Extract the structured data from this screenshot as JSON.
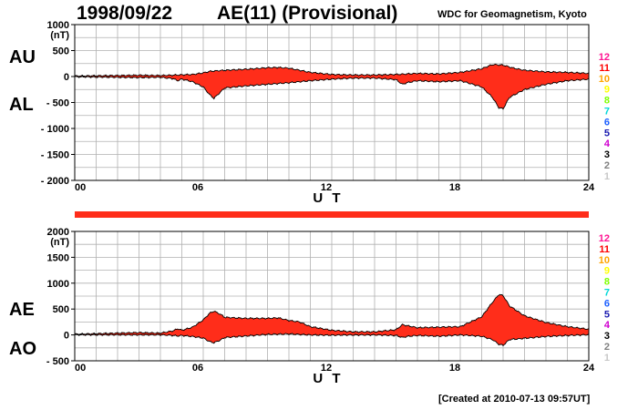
{
  "header": {
    "date": "1998/09/22",
    "title": "AE(11) (Provisional)",
    "source": "WDC for Geomagnetism, Kyoto",
    "created": "[Created at 2010-07-13 09:57UT]"
  },
  "colors": {
    "fill": "#ff2d1a",
    "line": "#000000",
    "grid": "#b0b0b0"
  },
  "station_counts": [
    {
      "label": "12",
      "color": "#ff1493"
    },
    {
      "label": "11",
      "color": "#ff0000"
    },
    {
      "label": "10",
      "color": "#ffa500"
    },
    {
      "label": "9",
      "color": "#ffff00"
    },
    {
      "label": "8",
      "color": "#7fff00"
    },
    {
      "label": "7",
      "color": "#00d8d8"
    },
    {
      "label": "6",
      "color": "#1e60ff"
    },
    {
      "label": "5",
      "color": "#1c1cb0"
    },
    {
      "label": "4",
      "color": "#d000d0"
    },
    {
      "label": "3",
      "color": "#000000"
    },
    {
      "label": "2",
      "color": "#808080"
    },
    {
      "label": "1",
      "color": "#c8c8c8"
    }
  ],
  "chart_data": [
    {
      "type": "area",
      "unit": "(nT)",
      "xlabel": "U T",
      "xlim": [
        0,
        24
      ],
      "xticks": [
        "00",
        "06",
        "12",
        "18",
        "24"
      ],
      "ylim": [
        -2000,
        1000
      ],
      "yticks": [
        "1000",
        "500",
        "0",
        "- 500",
        "- 1000",
        "- 1500",
        "- 2000"
      ],
      "grid": true,
      "series": [
        {
          "name": "AU",
          "x": [
            0,
            1,
            2,
            3,
            4,
            4.8,
            5.5,
            6,
            6.3,
            6.6,
            7,
            8,
            9,
            9.5,
            10,
            10.5,
            11,
            12,
            13,
            14,
            15,
            15.5,
            16,
            17,
            18,
            19,
            19.5,
            20,
            20.5,
            21,
            22,
            23,
            24
          ],
          "values": [
            10,
            15,
            20,
            25,
            20,
            30,
            40,
            70,
            100,
            110,
            120,
            140,
            170,
            175,
            160,
            120,
            80,
            40,
            30,
            30,
            40,
            50,
            60,
            50,
            80,
            150,
            230,
            220,
            160,
            120,
            90,
            80,
            60
          ]
        },
        {
          "name": "AL",
          "x": [
            0,
            1,
            2,
            3,
            4,
            4.6,
            4.8,
            5,
            5.5,
            6,
            6.3,
            6.5,
            6.8,
            7,
            8,
            9,
            10,
            11,
            12,
            13,
            14,
            15,
            15.3,
            15.5,
            16,
            17,
            18,
            19,
            19.5,
            19.8,
            20,
            20.3,
            21,
            22,
            23,
            24
          ],
          "values": [
            -5,
            -10,
            -15,
            -20,
            -15,
            -40,
            -80,
            -50,
            -100,
            -200,
            -350,
            -420,
            -300,
            -220,
            -180,
            -150,
            -120,
            -80,
            -50,
            -30,
            -30,
            -60,
            -150,
            -120,
            -80,
            -100,
            -80,
            -200,
            -400,
            -600,
            -620,
            -400,
            -250,
            -150,
            -80,
            -50
          ]
        }
      ]
    },
    {
      "type": "area",
      "unit": "(nT)",
      "xlabel": "U T",
      "xlim": [
        0,
        24
      ],
      "xticks": [
        "00",
        "06",
        "12",
        "18",
        "24"
      ],
      "ylim": [
        -500,
        2000
      ],
      "yticks": [
        "2000",
        "1500",
        "1000",
        "500",
        "0",
        "- 500"
      ],
      "grid": true,
      "series": [
        {
          "name": "AE",
          "x": [
            0,
            1,
            2,
            3,
            4,
            4.6,
            4.8,
            5,
            5.5,
            6,
            6.3,
            6.5,
            6.8,
            7,
            8,
            9,
            9.5,
            10,
            10.5,
            11,
            12,
            13,
            14,
            15,
            15.3,
            15.5,
            16,
            17,
            18,
            19,
            19.5,
            19.8,
            20,
            20.3,
            21,
            22,
            23,
            24
          ],
          "values": [
            15,
            25,
            35,
            45,
            35,
            80,
            120,
            90,
            150,
            290,
            420,
            460,
            400,
            340,
            320,
            320,
            330,
            280,
            250,
            160,
            90,
            60,
            60,
            100,
            200,
            180,
            140,
            150,
            160,
            350,
            630,
            780,
            760,
            560,
            370,
            240,
            160,
            110
          ]
        },
        {
          "name": "AO",
          "x": [
            0,
            1,
            2,
            3,
            4,
            4.6,
            4.8,
            5,
            5.5,
            6,
            6.3,
            6.5,
            6.8,
            7,
            8,
            9,
            9.5,
            10,
            10.5,
            11,
            12,
            13,
            14,
            15,
            15.3,
            15.5,
            16,
            17,
            18,
            19,
            19.5,
            19.8,
            20,
            20.3,
            21,
            22,
            23,
            24
          ],
          "values": [
            2,
            2,
            2,
            2,
            2,
            -10,
            -20,
            -10,
            -30,
            -60,
            -130,
            -150,
            -100,
            -50,
            -20,
            10,
            15,
            20,
            10,
            0,
            -5,
            0,
            0,
            -10,
            -50,
            -30,
            -10,
            -25,
            0,
            -25,
            -90,
            -180,
            -200,
            -90,
            -65,
            -30,
            -10,
            5
          ]
        }
      ]
    }
  ]
}
